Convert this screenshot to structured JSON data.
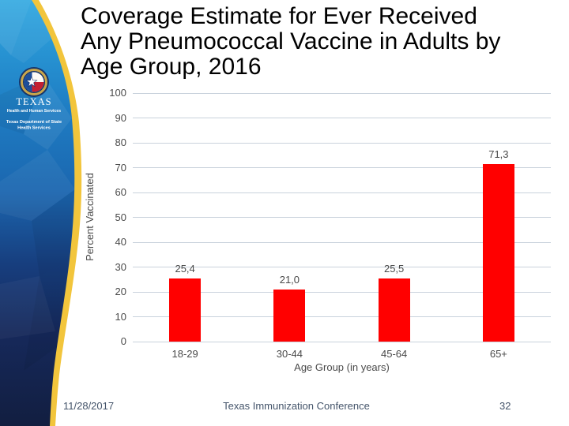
{
  "slide": {
    "title_lines": {
      "line1": "Coverage Estimate for Ever Received",
      "line2": "Any Pneumococcal Vaccine in Adults by",
      "line3": "Age Group, 2016"
    },
    "footer": {
      "date": "11/28/2017",
      "event": "Texas Immunization Conference",
      "page_number": "32",
      "text_color": "#44546A"
    }
  },
  "sidebar": {
    "seal_icon": "texas-hhs-seal",
    "org_name": "TEXAS",
    "org_subtitle": "Health and Human Services",
    "dept_line1": "Texas Department of State",
    "dept_line2": "Health Services",
    "colors": {
      "accent_yellow": "#F2C53C",
      "sky_blue": "#2FA7E0",
      "mid_blue": "#1B66AF",
      "navy": "#131F44"
    }
  },
  "chart_data": {
    "type": "bar",
    "title": "Coverage Estimate for Ever Received Any Pneumococcal Vaccine in Adults by Age Group, 2016",
    "categories": [
      "18-29",
      "30-44",
      "45-64",
      "65+"
    ],
    "values": [
      25.4,
      21.0,
      25.5,
      71.3
    ],
    "value_labels": [
      "25,4",
      "21,0",
      "25,5",
      "71,3"
    ],
    "xlabel": "Age Group (in years)",
    "ylabel": "Percent Vaccinated",
    "ylim": [
      0,
      100
    ],
    "yticks": [
      0,
      10,
      20,
      30,
      40,
      50,
      60,
      70,
      80,
      90,
      100
    ],
    "grid": true,
    "legend": false,
    "bar_color": "#FF0000",
    "gridline_color": "#C9D2DC",
    "text_color": "#4A4A4A"
  }
}
